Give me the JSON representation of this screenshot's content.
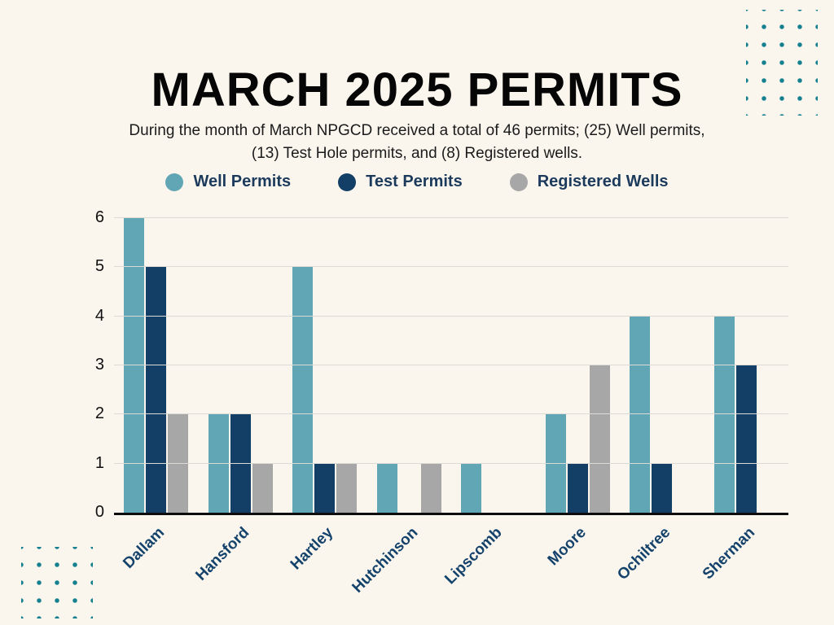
{
  "page": {
    "background": "#faf6ee",
    "accent_dot_color": "#15808f"
  },
  "title": "MARCH 2025 PERMITS",
  "subtitle": "During the month of March NPGCD received a total of 46 permits; (25) Well permits, (13) Test Hole permits, and (8) Registered wells.",
  "chart_data": {
    "type": "bar",
    "title": "MARCH 2025 PERMITS",
    "categories": [
      "Dallam",
      "Hansford",
      "Hartley",
      "Hutchinson",
      "Lipscomb",
      "Moore",
      "Ochiltree",
      "Sherman"
    ],
    "series": [
      {
        "name": "Well Permits",
        "color": "#61a6b5",
        "values": [
          6,
          2,
          5,
          1,
          1,
          2,
          4,
          4
        ]
      },
      {
        "name": "Test Permits",
        "color": "#133f66",
        "values": [
          5,
          2,
          1,
          0,
          0,
          1,
          1,
          3
        ]
      },
      {
        "name": "Registered Wells",
        "color": "#a7a7a7",
        "values": [
          2,
          1,
          1,
          1,
          0,
          3,
          0,
          0
        ]
      }
    ],
    "totals": {
      "all_permits": 46,
      "well_permits": 25,
      "test_hole_permits": 13,
      "registered_wells": 8
    },
    "xlabel": "",
    "ylabel": "",
    "ylim": [
      0,
      6
    ],
    "yticks": [
      0,
      1,
      2,
      3,
      4,
      5,
      6
    ],
    "grid": true,
    "legend_position": "top"
  }
}
